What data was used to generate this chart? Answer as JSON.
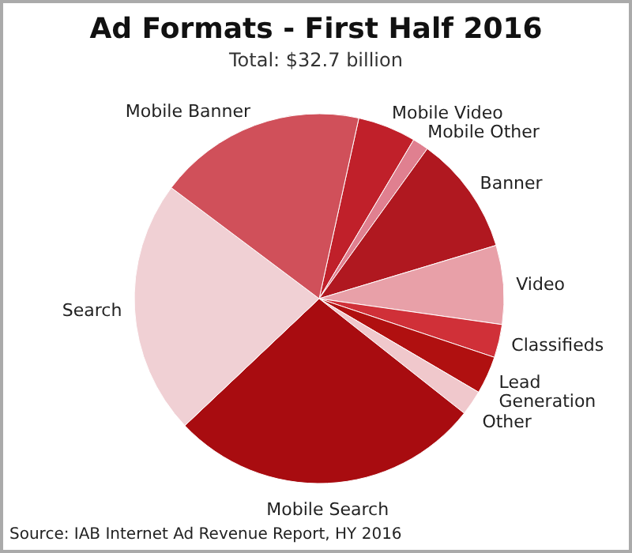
{
  "chart_data": {
    "type": "pie",
    "title": "Ad Formats - First Half 2016",
    "subtitle": "Total: $32.7 billion",
    "categories": [
      "Mobile Video",
      "Mobile Other",
      "Banner",
      "Video",
      "Classifieds",
      "Lead Generation",
      "Other",
      "Mobile Search",
      "Search",
      "Mobile Banner"
    ],
    "values": [
      5.1,
      1.4,
      10.4,
      6.9,
      2.9,
      3.3,
      2.2,
      27.3,
      22.3,
      18.2
    ],
    "colors": [
      "#c0202a",
      "#e08090",
      "#b01820",
      "#e8a0a8",
      "#d03038",
      "#b01010",
      "#f0c8cc",
      "#a80c10",
      "#f0d0d4",
      "#d0505a"
    ],
    "annotations": [
      "Source: IAB Internet Ad Revenue Report, HY 2016"
    ]
  }
}
